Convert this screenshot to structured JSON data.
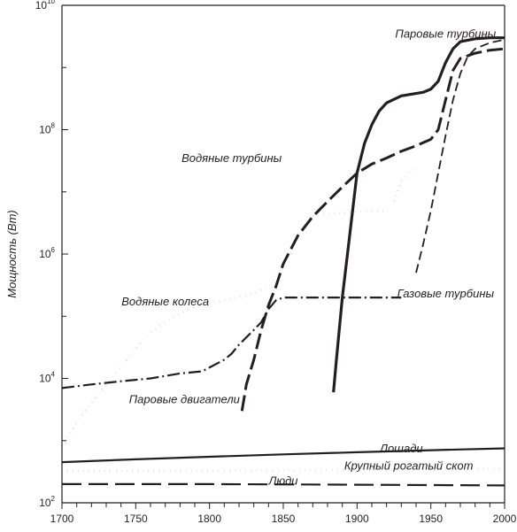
{
  "chart_data": {
    "type": "line",
    "title": "",
    "xlabel": "",
    "ylabel": "Мощность (Вт)",
    "xlim": [
      1700,
      2000
    ],
    "ylim": [
      100,
      10000000000
    ],
    "yscale": "log",
    "grid": false,
    "legend": "none",
    "x_ticks": [
      "1700",
      "1750",
      "1800",
      "1850",
      "1900",
      "1950",
      "2000"
    ],
    "y_ticks": [
      {
        "base": "10",
        "exp": "2"
      },
      {
        "base": "10",
        "exp": "4"
      },
      {
        "base": "10",
        "exp": "6"
      },
      {
        "base": "10",
        "exp": "8"
      },
      {
        "base": "10",
        "exp": "10"
      }
    ],
    "series": [
      {
        "name": "Паровые турбины",
        "style": "solid",
        "points": [
          [
            1884,
            6000
          ],
          [
            1886,
            20000
          ],
          [
            1890,
            200000
          ],
          [
            1895,
            2000000
          ],
          [
            1900,
            20000000
          ],
          [
            1905,
            60000000
          ],
          [
            1910,
            120000000
          ],
          [
            1915,
            200000000
          ],
          [
            1920,
            270000000
          ],
          [
            1930,
            350000000
          ],
          [
            1945,
            400000000
          ],
          [
            1950,
            450000000
          ],
          [
            1955,
            600000000
          ],
          [
            1960,
            1200000000
          ],
          [
            1965,
            2000000000
          ],
          [
            1970,
            2600000000
          ],
          [
            1980,
            2900000000
          ],
          [
            1990,
            3000000000
          ],
          [
            2000,
            3000000000
          ]
        ]
      },
      {
        "name": "Водяные турбины",
        "style": "dashed",
        "points": [
          [
            1822,
            3000
          ],
          [
            1825,
            8000
          ],
          [
            1830,
            20000
          ],
          [
            1835,
            60000
          ],
          [
            1840,
            150000
          ],
          [
            1845,
            300000
          ],
          [
            1850,
            700000
          ],
          [
            1860,
            2000000
          ],
          [
            1870,
            4000000
          ],
          [
            1880,
            7000000
          ],
          [
            1890,
            12000000
          ],
          [
            1900,
            20000000
          ],
          [
            1910,
            28000000
          ],
          [
            1920,
            35000000
          ],
          [
            1930,
            45000000
          ],
          [
            1940,
            55000000
          ],
          [
            1950,
            70000000
          ],
          [
            1955,
            100000000
          ],
          [
            1960,
            300000000
          ],
          [
            1965,
            900000000
          ],
          [
            1970,
            1400000000
          ],
          [
            1980,
            1700000000
          ],
          [
            1990,
            1900000000
          ],
          [
            2000,
            2000000000
          ]
        ]
      },
      {
        "name": "Газовые турбины",
        "style": "short-dash",
        "points": [
          [
            1940,
            500000
          ],
          [
            1945,
            1500000
          ],
          [
            1950,
            5000000
          ],
          [
            1955,
            20000000
          ],
          [
            1960,
            80000000
          ],
          [
            1965,
            300000000
          ],
          [
            1970,
            800000000
          ],
          [
            1975,
            1500000000
          ],
          [
            1980,
            2000000000
          ],
          [
            1990,
            2500000000
          ],
          [
            2000,
            2800000000
          ]
        ]
      },
      {
        "name": "Водяные колеса",
        "style": "dotted",
        "points": [
          [
            1700,
            800
          ],
          [
            1705,
            1200
          ],
          [
            1710,
            2000
          ],
          [
            1720,
            4000
          ],
          [
            1730,
            8000
          ],
          [
            1740,
            15000
          ],
          [
            1750,
            30000
          ],
          [
            1760,
            55000
          ],
          [
            1770,
            80000
          ],
          [
            1780,
            110000
          ],
          [
            1790,
            140000
          ],
          [
            1800,
            160000
          ],
          [
            1810,
            180000
          ],
          [
            1820,
            200000
          ],
          [
            1830,
            230000
          ],
          [
            1840,
            300000
          ],
          [
            1850,
            700000
          ],
          [
            1855,
            1000000
          ],
          [
            1860,
            2000000
          ],
          [
            1870,
            4000000
          ],
          [
            1880,
            4500000
          ],
          [
            1890,
            4500000
          ],
          [
            1900,
            4800000
          ],
          [
            1910,
            5000000
          ],
          [
            1920,
            5000000
          ],
          [
            1925,
            7000000
          ],
          [
            1930,
            15000000
          ],
          [
            1935,
            20000000
          ],
          [
            1940,
            25000000
          ]
        ]
      },
      {
        "name": "Паровые двигатели",
        "style": "dash-dot",
        "points": [
          [
            1700,
            7000
          ],
          [
            1720,
            8000
          ],
          [
            1740,
            9000
          ],
          [
            1760,
            10000
          ],
          [
            1780,
            12000
          ],
          [
            1795,
            13000
          ],
          [
            1800,
            15000
          ],
          [
            1810,
            20000
          ],
          [
            1815,
            25000
          ],
          [
            1820,
            35000
          ],
          [
            1830,
            60000
          ],
          [
            1835,
            80000
          ],
          [
            1840,
            130000
          ],
          [
            1845,
            180000
          ],
          [
            1850,
            200000
          ],
          [
            1860,
            200000
          ],
          [
            1880,
            200000
          ],
          [
            1900,
            200000
          ],
          [
            1920,
            200000
          ],
          [
            1930,
            200000
          ]
        ]
      },
      {
        "name": "Лошади",
        "style": "solid-thin",
        "points": [
          [
            1700,
            450
          ],
          [
            1750,
            500
          ],
          [
            1800,
            550
          ],
          [
            1850,
            600
          ],
          [
            1900,
            650
          ],
          [
            1950,
            700
          ],
          [
            2000,
            750
          ]
        ]
      },
      {
        "name": "Крупный рогатый скот",
        "style": "dotted",
        "points": [
          [
            1700,
            320
          ],
          [
            1800,
            330
          ],
          [
            1900,
            340
          ],
          [
            2000,
            350
          ]
        ]
      },
      {
        "name": "Люди",
        "style": "long-dash",
        "points": [
          [
            1700,
            200
          ],
          [
            1800,
            200
          ],
          [
            1900,
            195
          ],
          [
            2000,
            190
          ]
        ]
      }
    ],
    "series_labels": [
      {
        "series": "Паровые турбины",
        "at": [
          1960,
          3000000000
        ]
      },
      {
        "series": "Водяные турбины",
        "at": [
          1815,
          30000000
        ]
      },
      {
        "series": "Газовые турбины",
        "at": [
          1960,
          200000
        ]
      },
      {
        "series": "Водяные колеса",
        "at": [
          1770,
          150000
        ]
      },
      {
        "series": "Паровые двигатели",
        "at": [
          1783,
          4000
        ]
      },
      {
        "series": "Лошади",
        "at": [
          1930,
          650
        ]
      },
      {
        "series": "Крупный рогатый скот",
        "at": [
          1935,
          340
        ]
      },
      {
        "series": "Люди",
        "at": [
          1850,
          195
        ]
      }
    ]
  }
}
